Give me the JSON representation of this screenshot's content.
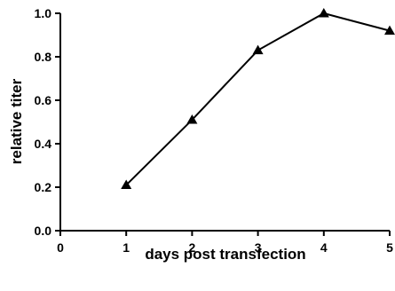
{
  "chart_data": {
    "type": "line",
    "title": "",
    "xlabel": "days post transfection",
    "ylabel": "relative titer",
    "x": [
      1,
      2,
      3,
      4,
      5
    ],
    "series": [
      {
        "values": [
          0.21,
          0.51,
          0.83,
          1.0,
          0.92
        ],
        "marker": "triangle",
        "color": "#000000"
      }
    ],
    "xlim": [
      0,
      5
    ],
    "ylim": [
      0,
      1.0
    ],
    "xticks": [
      0,
      1,
      2,
      3,
      4,
      5
    ],
    "xtick_labels": [
      "0",
      "1",
      "2",
      "3",
      "4",
      "5"
    ],
    "yticks": [
      0,
      0.2,
      0.4,
      0.6,
      0.8,
      1.0
    ],
    "ytick_labels": [
      "0.0",
      "0.2",
      "0.4",
      "0.6",
      "0.8",
      "1.0"
    ],
    "grid": false,
    "legend": "none"
  }
}
